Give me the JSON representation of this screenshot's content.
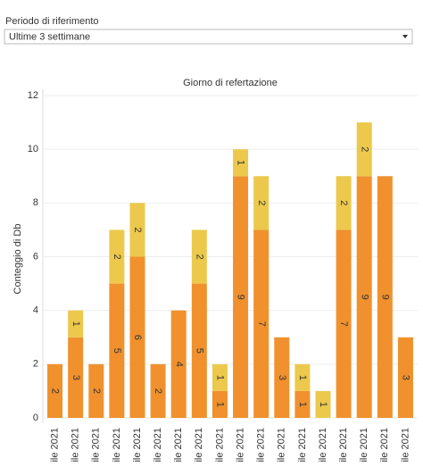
{
  "filter": {
    "label": "Periodo di riferimento",
    "value": "Ultime 3 settimane"
  },
  "chart_data": {
    "type": "stacked_bar",
    "title": "Giorno di refertazione",
    "y_label": "Conteggio di Db",
    "categories": [
      "ile 2021",
      "ile 2021",
      "ile 2021",
      "ile 2021",
      "ile 2021",
      "ile 2021",
      "ile 2021",
      "ile 2021",
      "ile 2021",
      "ile 2021",
      "ile 2021",
      "ile 2021",
      "ile 2021",
      "ile 2021",
      "ile 2021",
      "ile 2021",
      "ile 2021",
      "ile 2021"
    ],
    "series": [
      {
        "color": "#f0912e",
        "values": [
          2,
          3,
          2,
          5,
          6,
          2,
          4,
          5,
          1,
          9,
          7,
          3,
          1,
          null,
          7,
          9,
          9,
          3
        ]
      },
      {
        "color": "#ecc94c",
        "values": [
          null,
          1,
          null,
          2,
          2,
          null,
          null,
          2,
          1,
          1,
          2,
          null,
          1,
          1,
          2,
          2,
          null,
          null
        ]
      }
    ],
    "ylim": [
      0,
      12
    ],
    "yticks": [
      0,
      2,
      4,
      6,
      8,
      10,
      12
    ],
    "grid": true
  }
}
